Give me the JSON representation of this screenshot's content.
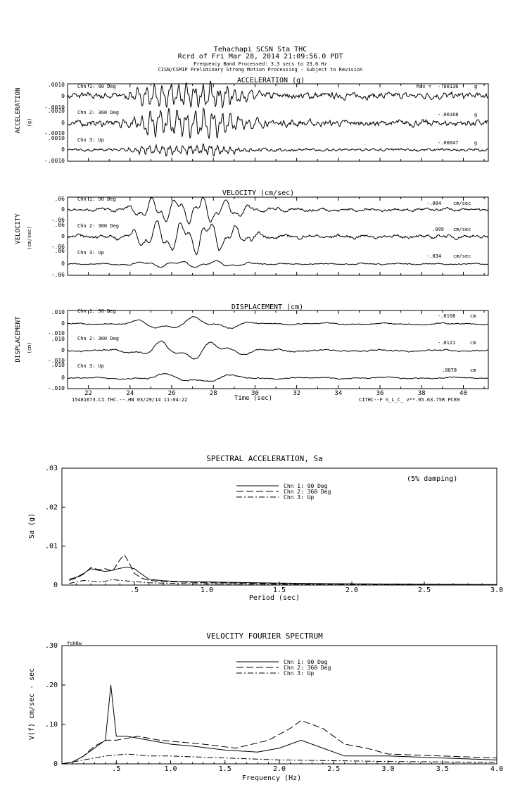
{
  "header": {
    "line1": "Tehachapi     SCSN Sta THC",
    "line2": "Rcrd of Fri Mar 28, 2014 21:09:56.0 PDT",
    "line3": "Frequency Band Processed: 3.3 secs to 23.0 Hz",
    "line4": "CISN/CSMIP Preliminary Strong Motion Processing - Subject to Revision"
  },
  "footer": {
    "left": "15481673.CI.THC.--.HN 03/29/14 11:04:22",
    "right": "CITHC--F  S_L_C_  v**.05.63.75R PC89"
  },
  "time_panels": {
    "time_axis": {
      "label": "Time (sec)",
      "ticks": [
        "22",
        "24",
        "26",
        "28",
        "30",
        "32",
        "34",
        "36",
        "38",
        "40"
      ],
      "range": [
        21.0,
        41.2
      ]
    },
    "acceleration": {
      "title": "ACCELERATION (g)",
      "side_label": "ACCELERATION",
      "unit_label": "(g)",
      "unit": "g",
      "max_prefix": "Max =",
      "ytick_top": ".0010",
      "ytick_zero": "0",
      "ytick_bottom": "-.0010",
      "ytick_bottom_short": "-.0010",
      "channels": [
        {
          "name": "Chn 1: 90 Deg",
          "max": "-.00136"
        },
        {
          "name": "Chn 2: 360 Deg",
          "max": "-.00168"
        },
        {
          "name": "Chn 3: Up",
          "max": "-.00047"
        }
      ]
    },
    "velocity": {
      "title": "VELOCITY (cm/sec)",
      "side_label": "VELOCITY",
      "unit_label": "(cm/sec)",
      "unit": "cm/sec",
      "ytick_top": ".06",
      "ytick_zero": "0",
      "ytick_bottom": "-.06",
      "channels": [
        {
          "name": "Chn 1: 90 Deg",
          "max": "-.084"
        },
        {
          "name": "Chn 2: 360 Deg",
          "max": ".099"
        },
        {
          "name": "Chn 3: Up",
          "max": "-.034"
        }
      ]
    },
    "displacement": {
      "title": "DISPLACEMENT (cm)",
      "side_label": "DISPLACEMENT",
      "unit_label": "(cm)",
      "unit": "cm",
      "ytick_top": ".010",
      "ytick_zero": "0",
      "ytick_bottom": "-.010",
      "channels": [
        {
          "name": "Chn 1: 90 Deg",
          "max": "-.0108"
        },
        {
          "name": "Chn 2: 360 Deg",
          "max": "-.0121"
        },
        {
          "name": "Chn 3: Up",
          "max": ".0078"
        }
      ]
    }
  },
  "chart_data": [
    {
      "type": "line",
      "title": "SPECTRAL ACCELERATION, Sa",
      "xlabel": "Period (sec)",
      "ylabel": "Sa (g)",
      "annotation": "(5% damping)",
      "xlim": [
        0,
        3.0
      ],
      "ylim": [
        0,
        0.03
      ],
      "xticks": [
        ".5",
        "1.0",
        "1.5",
        "2.0",
        "2.5",
        "3.0"
      ],
      "yticks": [
        "0",
        ".01",
        ".02",
        ".03"
      ],
      "legend_position": "top-center",
      "series": [
        {
          "name": "Chn 1: 90 Deg",
          "style": "solid",
          "x": [
            0.05,
            0.1,
            0.15,
            0.2,
            0.25,
            0.3,
            0.35,
            0.4,
            0.45,
            0.5,
            0.55,
            0.6,
            0.7,
            0.8,
            1.0,
            1.5,
            2.0,
            2.5,
            3.0
          ],
          "y": [
            0.0015,
            0.002,
            0.003,
            0.0042,
            0.0038,
            0.0035,
            0.0038,
            0.0043,
            0.0046,
            0.0042,
            0.0028,
            0.0015,
            0.0011,
            0.0009,
            0.0008,
            0.0005,
            0.0003,
            0.0002,
            0.0001
          ]
        },
        {
          "name": "Chn 2: 360 Deg",
          "style": "dashed",
          "x": [
            0.05,
            0.1,
            0.15,
            0.2,
            0.25,
            0.3,
            0.35,
            0.4,
            0.43,
            0.46,
            0.5,
            0.55,
            0.6,
            0.7,
            0.8,
            1.0,
            1.5,
            2.0,
            2.5,
            3.0
          ],
          "y": [
            0.0012,
            0.0018,
            0.0028,
            0.0045,
            0.004,
            0.0042,
            0.0035,
            0.0065,
            0.0078,
            0.006,
            0.003,
            0.0018,
            0.0012,
            0.0009,
            0.0008,
            0.0006,
            0.0004,
            0.0003,
            0.0002,
            0.0001
          ]
        },
        {
          "name": "Chn 3: Up",
          "style": "dashdot",
          "x": [
            0.05,
            0.1,
            0.15,
            0.2,
            0.25,
            0.3,
            0.35,
            0.4,
            0.5,
            0.6,
            0.8,
            1.0,
            1.5,
            2.0,
            3.0
          ],
          "y": [
            0.0004,
            0.0008,
            0.0012,
            0.001,
            0.0008,
            0.001,
            0.0014,
            0.0012,
            0.0009,
            0.0006,
            0.0004,
            0.0003,
            0.0002,
            0.0001,
            0.0001
          ]
        }
      ]
    },
    {
      "type": "line",
      "title": "VELOCITY FOURIER SPECTRUM",
      "corner_label": "fcH8w",
      "xlabel": "Frequency (Hz)",
      "ylabel": "V(f)   cm/sec - sec",
      "xlim": [
        0,
        4.0
      ],
      "ylim": [
        0,
        0.3
      ],
      "xticks": [
        ".5",
        "1.0",
        "1.5",
        "2.0",
        "2.5",
        "3.0",
        "3.5",
        "4.0"
      ],
      "yticks": [
        "0",
        ".10",
        ".20",
        ".30"
      ],
      "legend_position": "top-center",
      "series": [
        {
          "name": "Chn 1: 90 Deg",
          "style": "solid",
          "x": [
            0,
            0.1,
            0.2,
            0.3,
            0.4,
            0.45,
            0.5,
            0.6,
            0.8,
            1.0,
            1.2,
            1.5,
            1.8,
            2.0,
            2.2,
            2.4,
            2.6,
            3.0,
            3.5,
            4.0
          ],
          "y": [
            0,
            0.005,
            0.02,
            0.04,
            0.06,
            0.2,
            0.07,
            0.07,
            0.06,
            0.05,
            0.045,
            0.035,
            0.03,
            0.04,
            0.06,
            0.04,
            0.02,
            0.02,
            0.015,
            0.01
          ]
        },
        {
          "name": "Chn 2: 360 Deg",
          "style": "dashed",
          "x": [
            0,
            0.1,
            0.2,
            0.3,
            0.4,
            0.5,
            0.7,
            0.9,
            1.1,
            1.3,
            1.6,
            1.9,
            2.1,
            2.2,
            2.3,
            2.4,
            2.6,
            2.8,
            3.0,
            3.5,
            4.0
          ],
          "y": [
            0,
            0.005,
            0.02,
            0.045,
            0.06,
            0.06,
            0.07,
            0.06,
            0.055,
            0.05,
            0.04,
            0.06,
            0.09,
            0.11,
            0.1,
            0.09,
            0.05,
            0.04,
            0.025,
            0.02,
            0.015
          ]
        },
        {
          "name": "Chn 3: Up",
          "style": "dashdot",
          "x": [
            0,
            0.2,
            0.4,
            0.6,
            0.8,
            1.0,
            1.5,
            2.0,
            2.5,
            3.0,
            3.5,
            4.0
          ],
          "y": [
            0,
            0.01,
            0.02,
            0.025,
            0.02,
            0.02,
            0.015,
            0.01,
            0.008,
            0.006,
            0.005,
            0.004
          ]
        }
      ]
    }
  ]
}
